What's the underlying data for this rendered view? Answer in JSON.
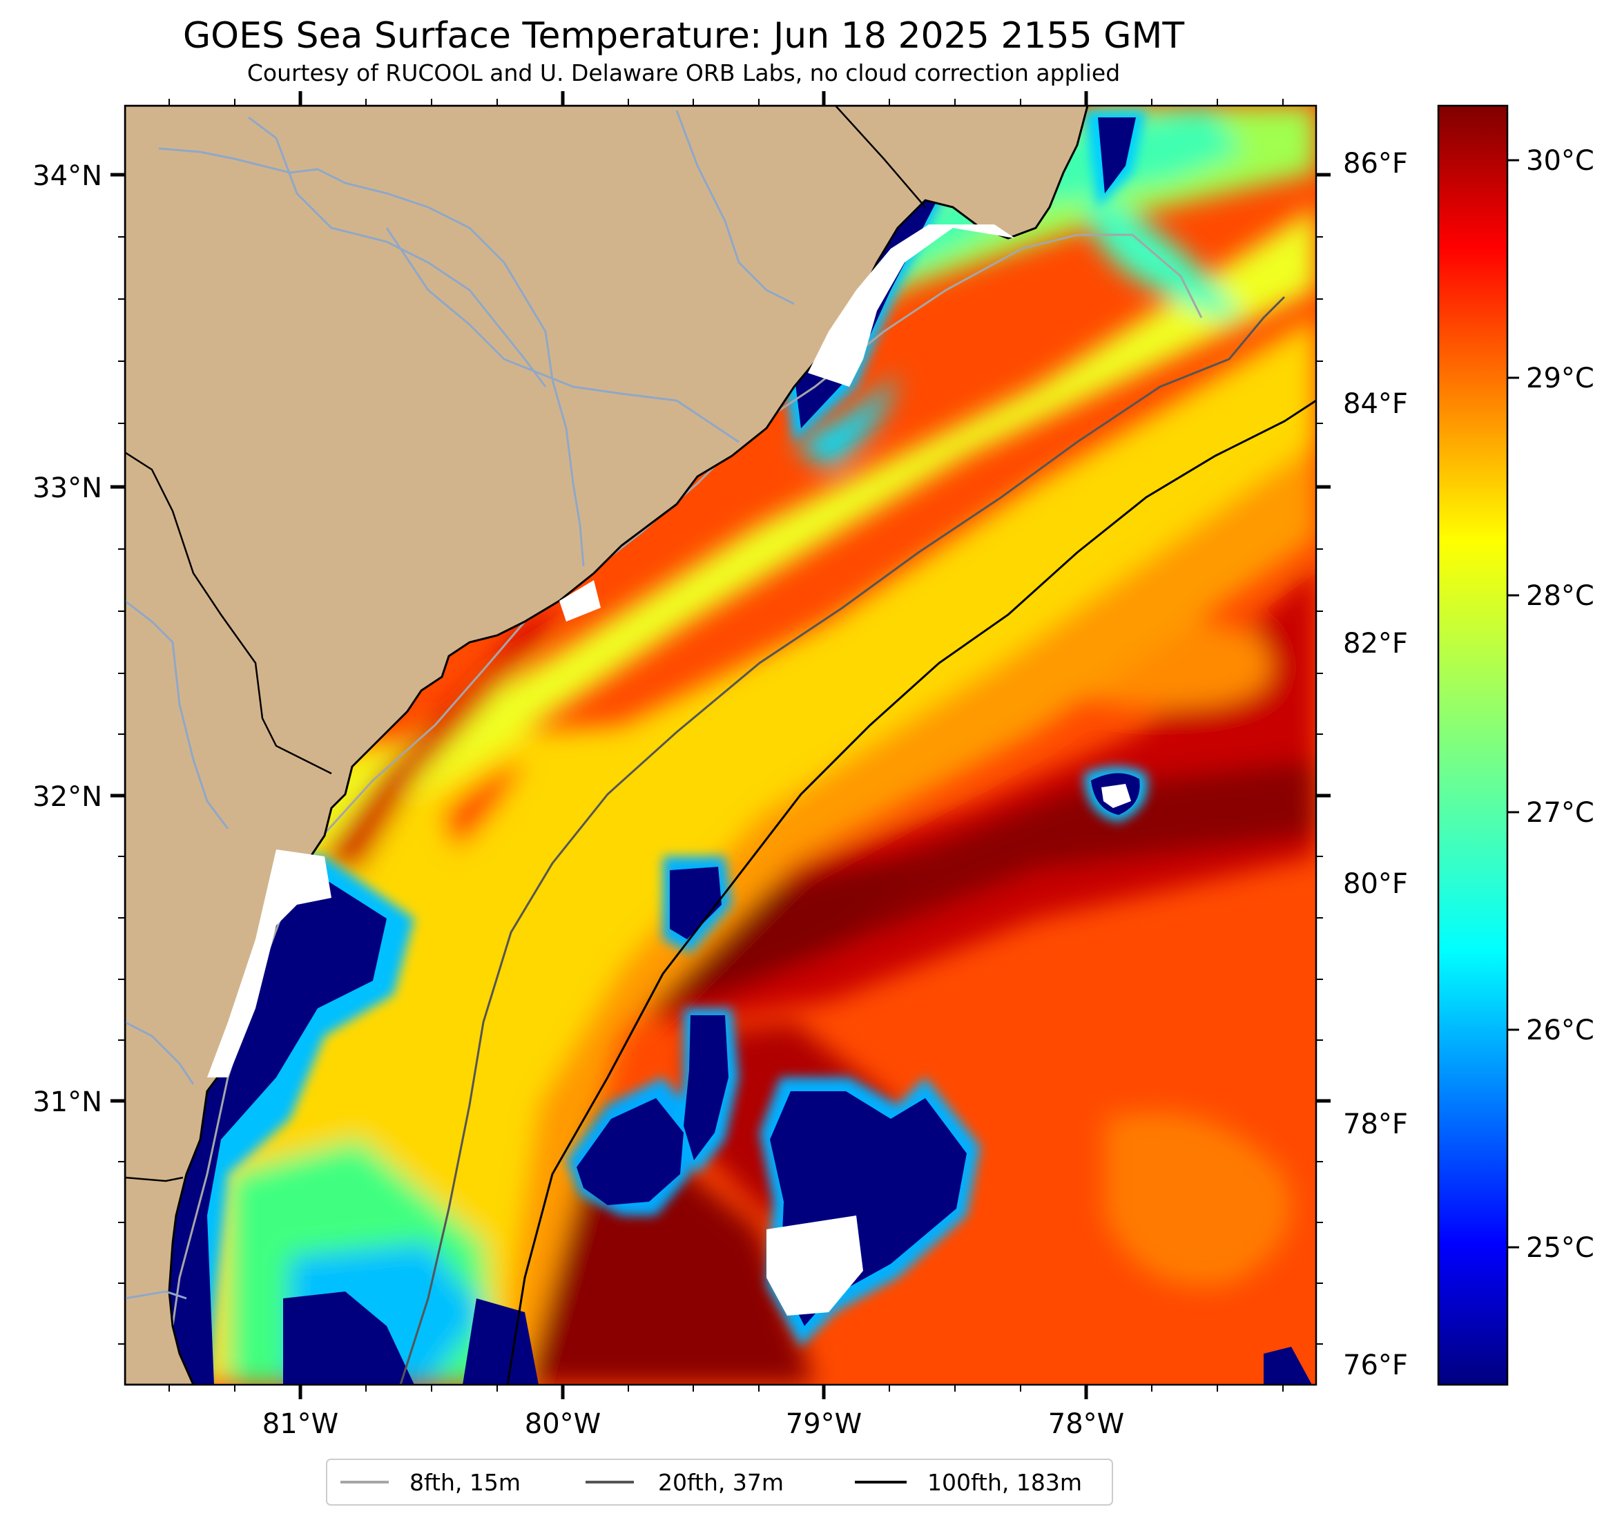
{
  "title": "GOES Sea Surface Temperature: Jun 18 2025 2155 GMT",
  "subtitle": "Courtesy of RUCOOL and U. Delaware ORB Labs, no cloud correction applied",
  "lat_ticks": [
    "34°N",
    "33°N",
    "32°N",
    "31°N"
  ],
  "lon_ticks": [
    "81°W",
    "80°W",
    "79°W",
    "78°W"
  ],
  "fahrenheit_ticks": [
    "86°F",
    "84°F",
    "82°F",
    "80°F",
    "78°F",
    "76°F"
  ],
  "celsius_ticks": [
    "30°C",
    "29°C",
    "28°C",
    "27°C",
    "26°C",
    "25°C"
  ],
  "legend": [
    {
      "label": "8fth, 15m",
      "color": "#a6a6a6"
    },
    {
      "label": "20fth, 37m",
      "color": "#555555"
    },
    {
      "label": "100fth, 183m",
      "color": "#000000"
    }
  ],
  "colors": {
    "land": "#d2b48c",
    "no_data": "#ffffff",
    "river": "#8fa8c8",
    "colormap": "jet"
  }
}
